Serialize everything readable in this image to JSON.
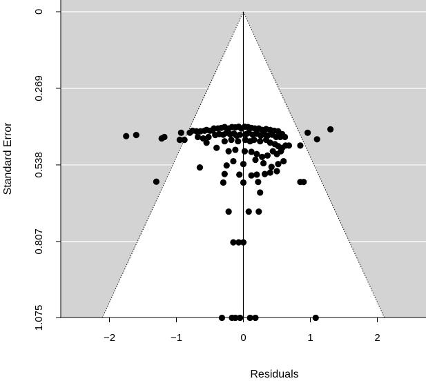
{
  "chart_data": {
    "type": "scatter",
    "subtype": "funnel",
    "title": "",
    "xlabel": "Residuals",
    "ylabel": "Standard Error",
    "xlim": [
      -2.7,
      2.7
    ],
    "ylim": [
      1.119,
      0
    ],
    "y_reversed": true,
    "x_ticks": [
      -2,
      -1,
      0,
      1,
      2
    ],
    "x_tick_labels": [
      "−2",
      "−1",
      "0",
      "1",
      "2"
    ],
    "y_ticks": [
      0,
      0.269,
      0.538,
      0.807,
      1.075
    ],
    "y_tick_labels": [
      "0",
      "0.269",
      "0.538",
      "0.807",
      "1.075"
    ],
    "grid": "horizontal",
    "funnel": {
      "center": 0,
      "z": 1.96,
      "region_color": "#ffffff",
      "background_color": "#d3d3d3"
    },
    "colors": {
      "points": "#000000",
      "grid": "#ffffff",
      "axis": "#000000"
    },
    "points": [
      {
        "x": -1.75,
        "y": 0.437
      },
      {
        "x": -1.6,
        "y": 0.433
      },
      {
        "x": -1.22,
        "y": 0.445
      },
      {
        "x": -1.18,
        "y": 0.44
      },
      {
        "x": -1.3,
        "y": 0.597
      },
      {
        "x": -0.93,
        "y": 0.425
      },
      {
        "x": -0.95,
        "y": 0.45
      },
      {
        "x": -0.88,
        "y": 0.45
      },
      {
        "x": -0.8,
        "y": 0.425
      },
      {
        "x": -0.76,
        "y": 0.418
      },
      {
        "x": -0.7,
        "y": 0.42
      },
      {
        "x": -0.64,
        "y": 0.42
      },
      {
        "x": -0.58,
        "y": 0.418
      },
      {
        "x": -0.55,
        "y": 0.415
      },
      {
        "x": -0.5,
        "y": 0.418
      },
      {
        "x": -0.46,
        "y": 0.417
      },
      {
        "x": -0.44,
        "y": 0.41
      },
      {
        "x": -0.38,
        "y": 0.41
      },
      {
        "x": -0.33,
        "y": 0.408
      },
      {
        "x": -0.28,
        "y": 0.405
      },
      {
        "x": -0.22,
        "y": 0.41
      },
      {
        "x": -0.17,
        "y": 0.405
      },
      {
        "x": -0.12,
        "y": 0.406
      },
      {
        "x": -0.07,
        "y": 0.404
      },
      {
        "x": -0.03,
        "y": 0.41
      },
      {
        "x": 0.02,
        "y": 0.404
      },
      {
        "x": 0.07,
        "y": 0.405
      },
      {
        "x": 0.12,
        "y": 0.408
      },
      {
        "x": 0.17,
        "y": 0.41
      },
      {
        "x": 0.23,
        "y": 0.41
      },
      {
        "x": 0.28,
        "y": 0.415
      },
      {
        "x": 0.34,
        "y": 0.412
      },
      {
        "x": 0.4,
        "y": 0.415
      },
      {
        "x": 0.46,
        "y": 0.418
      },
      {
        "x": 0.52,
        "y": 0.42
      },
      {
        "x": 0.58,
        "y": 0.43
      },
      {
        "x": -0.68,
        "y": 0.44
      },
      {
        "x": -0.6,
        "y": 0.445
      },
      {
        "x": -0.52,
        "y": 0.44
      },
      {
        "x": -0.42,
        "y": 0.433
      },
      {
        "x": -0.36,
        "y": 0.43
      },
      {
        "x": -0.3,
        "y": 0.432
      },
      {
        "x": -0.25,
        "y": 0.425
      },
      {
        "x": -0.2,
        "y": 0.43
      },
      {
        "x": -0.14,
        "y": 0.428
      },
      {
        "x": -0.1,
        "y": 0.435
      },
      {
        "x": -0.05,
        "y": 0.432
      },
      {
        "x": 0.04,
        "y": 0.43
      },
      {
        "x": 0.08,
        "y": 0.425
      },
      {
        "x": 0.14,
        "y": 0.432
      },
      {
        "x": 0.2,
        "y": 0.428
      },
      {
        "x": 0.26,
        "y": 0.435
      },
      {
        "x": 0.31,
        "y": 0.43
      },
      {
        "x": 0.36,
        "y": 0.435
      },
      {
        "x": 0.43,
        "y": 0.432
      },
      {
        "x": 0.49,
        "y": 0.44
      },
      {
        "x": 0.55,
        "y": 0.44
      },
      {
        "x": 0.62,
        "y": 0.44
      },
      {
        "x": -0.55,
        "y": 0.46
      },
      {
        "x": -0.4,
        "y": 0.478
      },
      {
        "x": -0.28,
        "y": 0.455
      },
      {
        "x": -0.18,
        "y": 0.45
      },
      {
        "x": -0.08,
        "y": 0.455
      },
      {
        "x": 0.03,
        "y": 0.45
      },
      {
        "x": 0.1,
        "y": 0.455
      },
      {
        "x": 0.16,
        "y": 0.45
      },
      {
        "x": 0.25,
        "y": 0.455
      },
      {
        "x": 0.34,
        "y": 0.45
      },
      {
        "x": 0.4,
        "y": 0.46
      },
      {
        "x": 0.47,
        "y": 0.465
      },
      {
        "x": 0.52,
        "y": 0.472
      },
      {
        "x": 0.58,
        "y": 0.478
      },
      {
        "x": 0.63,
        "y": 0.47
      },
      {
        "x": 0.68,
        "y": 0.47
      },
      {
        "x": 0.85,
        "y": 0.47
      },
      {
        "x": 0.96,
        "y": 0.425
      },
      {
        "x": 1.1,
        "y": 0.448
      },
      {
        "x": 1.3,
        "y": 0.413
      },
      {
        "x": -0.22,
        "y": 0.49
      },
      {
        "x": -0.12,
        "y": 0.485
      },
      {
        "x": 0.02,
        "y": 0.49
      },
      {
        "x": 0.12,
        "y": 0.492
      },
      {
        "x": 0.2,
        "y": 0.5
      },
      {
        "x": 0.28,
        "y": 0.51
      },
      {
        "x": 0.36,
        "y": 0.505
      },
      {
        "x": 0.44,
        "y": 0.49
      },
      {
        "x": 0.5,
        "y": 0.5
      },
      {
        "x": 0.56,
        "y": 0.49
      },
      {
        "x": -0.65,
        "y": 0.547
      },
      {
        "x": -0.25,
        "y": 0.54
      },
      {
        "x": -0.15,
        "y": 0.525
      },
      {
        "x": 0.0,
        "y": 0.535
      },
      {
        "x": 0.18,
        "y": 0.52
      },
      {
        "x": 0.3,
        "y": 0.532
      },
      {
        "x": 0.42,
        "y": 0.545
      },
      {
        "x": 0.52,
        "y": 0.535
      },
      {
        "x": 0.6,
        "y": 0.525
      },
      {
        "x": -0.28,
        "y": 0.57
      },
      {
        "x": -0.06,
        "y": 0.572
      },
      {
        "x": 0.12,
        "y": 0.575
      },
      {
        "x": 0.2,
        "y": 0.572
      },
      {
        "x": 0.32,
        "y": 0.57
      },
      {
        "x": 0.4,
        "y": 0.565
      },
      {
        "x": 0.5,
        "y": 0.56
      },
      {
        "x": 0.85,
        "y": 0.598
      },
      {
        "x": 0.9,
        "y": 0.598
      },
      {
        "x": -0.3,
        "y": 0.6
      },
      {
        "x": 0.0,
        "y": 0.6
      },
      {
        "x": 0.22,
        "y": 0.598
      },
      {
        "x": 0.25,
        "y": 0.635
      },
      {
        "x": -0.22,
        "y": 0.702
      },
      {
        "x": 0.08,
        "y": 0.702
      },
      {
        "x": 0.23,
        "y": 0.702
      },
      {
        "x": -0.15,
        "y": 0.81
      },
      {
        "x": -0.07,
        "y": 0.81
      },
      {
        "x": 0.0,
        "y": 0.81
      },
      {
        "x": -0.32,
        "y": 1.075
      },
      {
        "x": -0.17,
        "y": 1.075
      },
      {
        "x": -0.12,
        "y": 1.075
      },
      {
        "x": -0.05,
        "y": 1.075
      },
      {
        "x": 0.1,
        "y": 1.075
      },
      {
        "x": 0.18,
        "y": 1.075
      },
      {
        "x": 1.08,
        "y": 1.075
      }
    ]
  }
}
